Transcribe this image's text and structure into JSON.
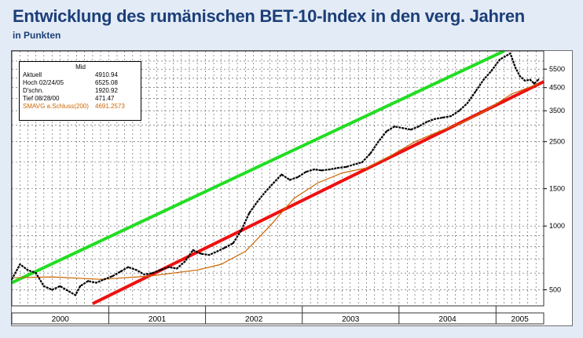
{
  "header": {
    "title": "Entwicklung des rumänischen BET-10-Index in den verg. Jahren",
    "subtitle": "in Punkten"
  },
  "legend": {
    "column_header": "Mid",
    "rows": [
      {
        "label": "Aktuell",
        "value": "4910.94"
      },
      {
        "label": "Hoch  02/24/05",
        "value": "6525.08"
      },
      {
        "label": "D'schn.",
        "value": "1920.92"
      },
      {
        "label": "Tief  08/28/00",
        "value": "471.47"
      }
    ],
    "sma_row": {
      "label": "SMAVG a.Schluss(200)",
      "value": "4691.2573"
    }
  },
  "colors": {
    "background": "#e3ebf6",
    "title": "#1c3f78",
    "price": "#000000",
    "sma": "#cc6600",
    "upper_trend": "#22dd22",
    "lower_trend": "#ee1111",
    "grid": "#555555"
  },
  "chart_data": {
    "type": "line",
    "title": "Entwicklung des rumänischen BET-10-Index in den verg. Jahren",
    "ylabel": "in Punkten",
    "yscale": "log",
    "ylim": [
      420,
      6700
    ],
    "x_years": [
      "2000",
      "2001",
      "2002",
      "2003",
      "2004",
      "2005"
    ],
    "x_range": [
      "2000-01-01",
      "2005-06-30"
    ],
    "y_ticks": [
      500,
      1000,
      1500,
      2500,
      3500,
      4500,
      5500
    ],
    "y_grid": [
      500,
      600,
      700,
      800,
      900,
      1000,
      1500,
      2000,
      2500,
      3000,
      3500,
      4000,
      4500,
      5000,
      5500,
      6000
    ],
    "grid": true,
    "series": [
      {
        "name": "Mid",
        "points": [
          [
            "2000-01-01",
            560
          ],
          [
            "2000-02-01",
            660
          ],
          [
            "2000-03-01",
            620
          ],
          [
            "2000-04-01",
            600
          ],
          [
            "2000-05-01",
            520
          ],
          [
            "2000-06-01",
            500
          ],
          [
            "2000-07-01",
            520
          ],
          [
            "2000-08-28",
            472
          ],
          [
            "2000-09-15",
            520
          ],
          [
            "2000-10-15",
            550
          ],
          [
            "2000-11-15",
            540
          ],
          [
            "2000-12-15",
            560
          ],
          [
            "2001-01-15",
            580
          ],
          [
            "2001-02-15",
            610
          ],
          [
            "2001-03-15",
            640
          ],
          [
            "2001-04-15",
            620
          ],
          [
            "2001-05-15",
            590
          ],
          [
            "2001-06-15",
            600
          ],
          [
            "2001-07-15",
            620
          ],
          [
            "2001-08-15",
            640
          ],
          [
            "2001-09-15",
            630
          ],
          [
            "2001-10-15",
            680
          ],
          [
            "2001-11-15",
            770
          ],
          [
            "2001-12-15",
            740
          ],
          [
            "2002-01-15",
            730
          ],
          [
            "2002-02-15",
            760
          ],
          [
            "2002-03-15",
            790
          ],
          [
            "2002-04-15",
            830
          ],
          [
            "2002-05-15",
            950
          ],
          [
            "2002-06-15",
            1150
          ],
          [
            "2002-07-15",
            1300
          ],
          [
            "2002-08-15",
            1450
          ],
          [
            "2002-09-15",
            1600
          ],
          [
            "2002-10-15",
            1750
          ],
          [
            "2002-11-15",
            1650
          ],
          [
            "2002-12-15",
            1700
          ],
          [
            "2003-01-15",
            1800
          ],
          [
            "2003-02-15",
            1850
          ],
          [
            "2003-03-15",
            1830
          ],
          [
            "2003-04-15",
            1850
          ],
          [
            "2003-05-15",
            1880
          ],
          [
            "2003-06-15",
            1900
          ],
          [
            "2003-07-15",
            1950
          ],
          [
            "2003-08-15",
            2000
          ],
          [
            "2003-09-15",
            2200
          ],
          [
            "2003-10-15",
            2500
          ],
          [
            "2003-11-15",
            2800
          ],
          [
            "2003-12-15",
            2950
          ],
          [
            "2004-01-15",
            2900
          ],
          [
            "2004-02-15",
            2850
          ],
          [
            "2004-03-15",
            2950
          ],
          [
            "2004-04-15",
            3100
          ],
          [
            "2004-05-15",
            3200
          ],
          [
            "2004-06-15",
            3250
          ],
          [
            "2004-07-15",
            3300
          ],
          [
            "2004-08-15",
            3500
          ],
          [
            "2004-09-15",
            3800
          ],
          [
            "2004-10-15",
            4300
          ],
          [
            "2004-11-15",
            4900
          ],
          [
            "2004-12-15",
            5400
          ],
          [
            "2005-01-15",
            6100
          ],
          [
            "2005-02-24",
            6525
          ],
          [
            "2005-03-15",
            5600
          ],
          [
            "2005-04-01",
            5100
          ],
          [
            "2005-04-20",
            4850
          ],
          [
            "2005-05-10",
            4900
          ],
          [
            "2005-05-25",
            4700
          ],
          [
            "2005-06-10",
            4911
          ]
        ]
      },
      {
        "name": "SMAVG a.Schluss(200)",
        "points": [
          [
            "2000-01-01",
            570
          ],
          [
            "2000-06-01",
            575
          ],
          [
            "2000-12-01",
            560
          ],
          [
            "2001-06-01",
            580
          ],
          [
            "2001-12-01",
            620
          ],
          [
            "2002-03-01",
            660
          ],
          [
            "2002-06-01",
            760
          ],
          [
            "2002-09-01",
            1000
          ],
          [
            "2002-12-01",
            1350
          ],
          [
            "2003-03-01",
            1600
          ],
          [
            "2003-06-01",
            1780
          ],
          [
            "2003-09-01",
            1880
          ],
          [
            "2003-12-01",
            2150
          ],
          [
            "2004-03-01",
            2500
          ],
          [
            "2004-06-01",
            2800
          ],
          [
            "2004-09-01",
            3100
          ],
          [
            "2004-12-01",
            3550
          ],
          [
            "2005-03-01",
            4200
          ],
          [
            "2005-06-10",
            4691
          ]
        ]
      },
      {
        "name": "Upper trend",
        "points": [
          [
            "2000-01-01",
            540
          ],
          [
            "2005-02-01",
            6700
          ]
        ]
      },
      {
        "name": "Lower trend",
        "points": [
          [
            "2000-11-01",
            430
          ],
          [
            "2005-06-30",
            4800
          ]
        ]
      }
    ]
  }
}
